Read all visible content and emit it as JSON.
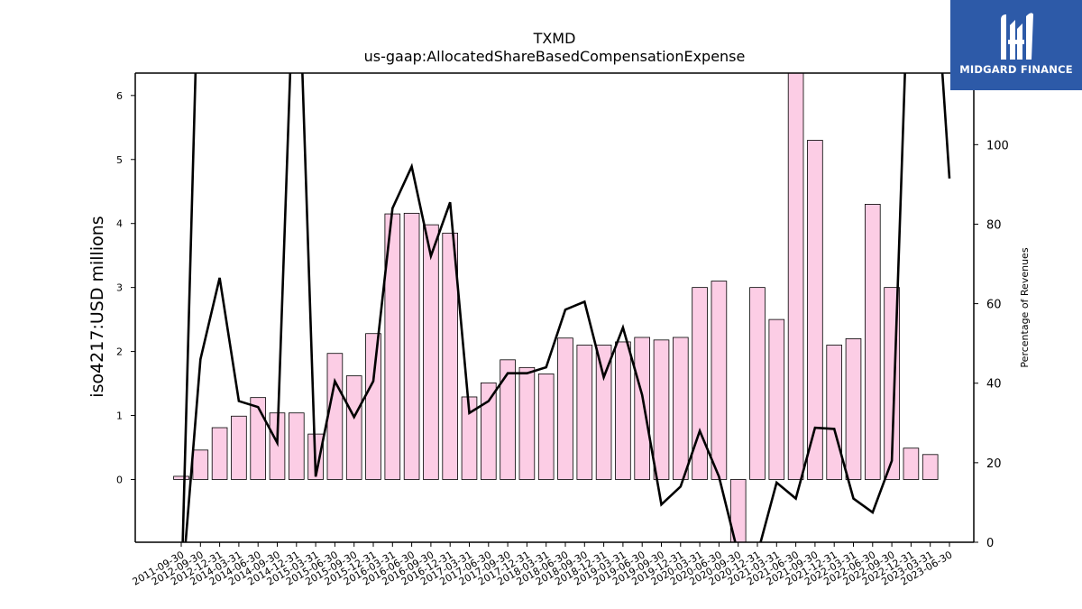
{
  "chart_data": {
    "type": "bar",
    "title": "TXMD",
    "subtitle": "us-gaap:AllocatedShareBasedCompensationExpense",
    "ylabel": "iso4217:USD  millions",
    "y2label": "Percentage of Revenues",
    "ylim": [
      -0.98,
      6.35
    ],
    "y2lim": [
      0,
      118
    ],
    "yticks": [
      0,
      1,
      2,
      3,
      4,
      5,
      6
    ],
    "y2ticks": [
      0,
      20,
      40,
      60,
      80,
      100
    ],
    "grid": false,
    "categories": [
      "2011-09-30",
      "2012-09-30",
      "2012-12-31",
      "2014-03-31",
      "2014-06-30",
      "2014-09-30",
      "2014-12-31",
      "2015-03-31",
      "2015-06-30",
      "2015-09-30",
      "2015-12-31",
      "2016-03-31",
      "2016-06-30",
      "2016-09-30",
      "2016-12-31",
      "2017-03-31",
      "2017-06-30",
      "2017-09-30",
      "2017-12-31",
      "2018-03-31",
      "2018-06-30",
      "2018-09-30",
      "2018-12-31",
      "2019-03-31",
      "2019-06-30",
      "2019-09-30",
      "2019-12-31",
      "2020-03-31",
      "2020-06-30",
      "2020-09-30",
      "2020-12-31",
      "2021-03-31",
      "2021-06-30",
      "2021-09-30",
      "2021-12-31",
      "2022-03-31",
      "2022-06-30",
      "2022-09-30",
      "2022-12-31",
      "2023-03-31",
      "2023-06-30"
    ],
    "series": [
      {
        "kind": "bar",
        "axis": "left",
        "color": "#fccde5",
        "values": [
          0.05,
          0.46,
          0.81,
          0.99,
          1.28,
          1.04,
          1.04,
          0.71,
          1.97,
          1.62,
          2.28,
          4.15,
          4.16,
          3.98,
          3.85,
          1.29,
          1.51,
          1.87,
          1.75,
          1.65,
          2.21,
          2.1,
          2.1,
          2.15,
          2.22,
          2.18,
          2.22,
          3.0,
          3.1,
          -0.98,
          3.0,
          2.5,
          6.35,
          5.3,
          2.1,
          2.2,
          4.3,
          3.0,
          0.49,
          0.39,
          null
        ]
      },
      {
        "kind": "line",
        "axis": "right",
        "color": "#000000",
        "values": [
          null,
          46.0,
          66.5,
          35.5,
          34.0,
          25.0,
          null,
          16.5,
          40.5,
          31.5,
          40.5,
          84.0,
          94.5,
          72.0,
          85.5,
          32.5,
          35.5,
          42.5,
          42.5,
          44.0,
          58.5,
          60.5,
          41.5,
          54.0,
          37.0,
          9.5,
          14.0,
          28.0,
          16.5,
          -3,
          -3,
          15.0,
          11.0,
          28.8,
          28.5,
          11.0,
          7.5,
          20.5,
          null,
          null,
          91.5
        ]
      }
    ]
  },
  "logo": {
    "text": "MIDGARD FINANCE"
  }
}
